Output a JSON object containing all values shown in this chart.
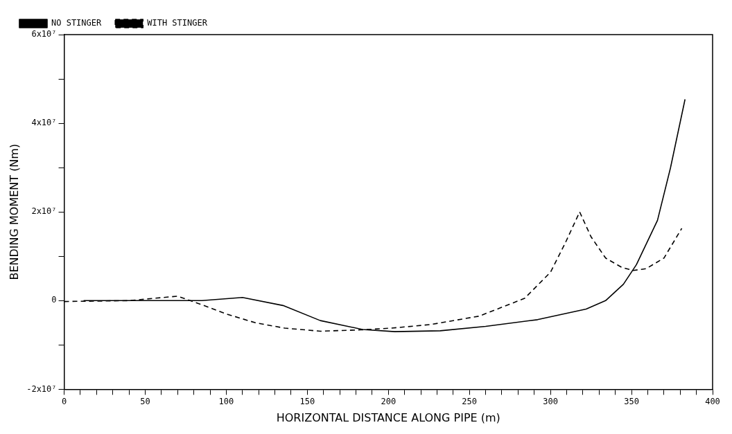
{
  "chart_data": {
    "type": "line",
    "xlabel": "HORIZONTAL DISTANCE ALONG PIPE (m)",
    "ylabel": "BENDING MOMENT (Nm)",
    "xlim": [
      0,
      400
    ],
    "ylim": [
      -20000000,
      60000000
    ],
    "xticks": [
      0,
      {
        "value": 10,
        "label": null
      },
      {
        "value": 20,
        "label": null
      },
      {
        "value": 30,
        "label": null
      },
      {
        "value": 40,
        "label": null
      },
      50,
      {
        "value": 60,
        "label": null
      },
      {
        "value": 70,
        "label": null
      },
      {
        "value": 80,
        "label": null
      },
      {
        "value": 90,
        "label": null
      },
      100,
      {
        "value": 110,
        "label": null
      },
      {
        "value": 120,
        "label": null
      },
      {
        "value": 130,
        "label": null
      },
      {
        "value": 140,
        "label": null
      },
      150,
      {
        "value": 160,
        "label": null
      },
      {
        "value": 170,
        "label": null
      },
      {
        "value": 180,
        "label": null
      },
      {
        "value": 190,
        "label": null
      },
      200,
      {
        "value": 210,
        "label": null
      },
      {
        "value": 220,
        "label": null
      },
      {
        "value": 230,
        "label": null
      },
      {
        "value": 240,
        "label": null
      },
      250,
      {
        "value": 260,
        "label": null
      },
      {
        "value": 270,
        "label": null
      },
      {
        "value": 280,
        "label": null
      },
      {
        "value": 290,
        "label": null
      },
      300,
      {
        "value": 310,
        "label": null
      },
      {
        "value": 320,
        "label": null
      },
      {
        "value": 330,
        "label": null
      },
      {
        "value": 340,
        "label": null
      },
      350,
      {
        "value": 360,
        "label": null
      },
      {
        "value": 370,
        "label": null
      },
      {
        "value": 380,
        "label": null
      },
      {
        "value": 390,
        "label": null
      },
      400
    ],
    "yticks": [
      {
        "value": -20000000,
        "label": "-2x10⁷"
      },
      {
        "value": -10000000,
        "label": null
      },
      {
        "value": 0,
        "label": "0"
      },
      {
        "value": 10000000,
        "label": null
      },
      {
        "value": 20000000,
        "label": "2x10⁷"
      },
      {
        "value": 30000000,
        "label": null
      },
      {
        "value": 40000000,
        "label": "4x10⁷"
      },
      {
        "value": 50000000,
        "label": null
      },
      {
        "value": 60000000,
        "label": "6x10⁷"
      }
    ],
    "grid": false,
    "legend": "top left",
    "marker": "none",
    "series": [
      {
        "name": "NO STINGER",
        "color": "#000000",
        "line_style": "solid",
        "x": [
          12,
          50,
          85,
          110,
          135,
          158,
          184,
          204,
          232,
          260,
          292,
          322,
          334,
          345,
          353,
          366,
          374,
          383
        ],
        "values": [
          0,
          0,
          0,
          700000,
          -1100000,
          -4500000,
          -6500000,
          -7000000,
          -6800000,
          -5800000,
          -4300000,
          -1900000,
          0,
          3700000,
          8100000,
          18100000,
          29900000,
          45400000
        ]
      },
      {
        "name": "WITH STINGER",
        "color": "#000000",
        "line_style": "dashed",
        "x": [
          0,
          40,
          70,
          84,
          100,
          118,
          136,
          158,
          183,
          202,
          226,
          256,
          284,
          300,
          309,
          318,
          325,
          334,
          344,
          351,
          359,
          370,
          381
        ],
        "values": [
          -200000,
          0,
          1000000,
          -800000,
          -3000000,
          -5000000,
          -6200000,
          -6900000,
          -6600000,
          -6200000,
          -5400000,
          -3500000,
          500000,
          6400000,
          12900000,
          20000000,
          14400000,
          9600000,
          7500000,
          6800000,
          7200000,
          9600000,
          16300000
        ]
      }
    ]
  }
}
